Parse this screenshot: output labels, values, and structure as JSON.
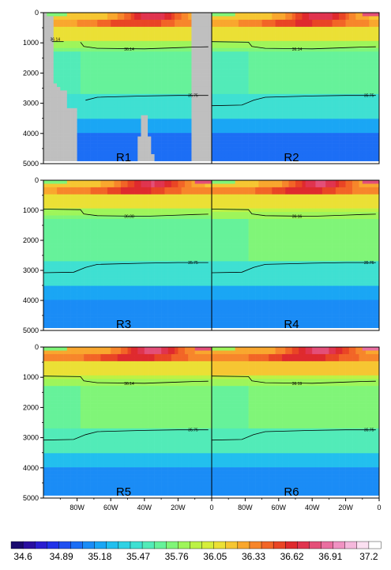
{
  "chart_data": {
    "type": "heatmap",
    "title": "",
    "xlabel": "",
    "ylabel": "",
    "x_range": [
      -100,
      0
    ],
    "y_range": [
      0,
      5000
    ],
    "y_inverted": true,
    "x_ticks": [
      {
        "value": -80,
        "label": "80W"
      },
      {
        "value": -60,
        "label": "60W"
      },
      {
        "value": -40,
        "label": "40W"
      },
      {
        "value": -20,
        "label": "20W"
      },
      {
        "value": 0,
        "label": "0"
      }
    ],
    "y_ticks": [
      {
        "value": 0,
        "label": "0"
      },
      {
        "value": 1000,
        "label": "1000"
      },
      {
        "value": 2000,
        "label": "2000"
      },
      {
        "value": 3000,
        "label": "3000"
      },
      {
        "value": 4000,
        "label": "4000"
      },
      {
        "value": 5000,
        "label": "5000"
      }
    ],
    "colorbar": {
      "labels": [
        "34.6",
        "34.89",
        "35.18",
        "35.47",
        "35.76",
        "36.05",
        "36.33",
        "36.62",
        "36.91",
        "37.2"
      ],
      "colors": [
        "#1a0a6e",
        "#2a0fa0",
        "#2b1ed0",
        "#2233e8",
        "#2050f0",
        "#1c6ef5",
        "#1a8cf6",
        "#1aa6f4",
        "#22bfee",
        "#30d2e4",
        "#3fe0d2",
        "#52ebb8",
        "#66f29a",
        "#80f578",
        "#9ef55a",
        "#bcf245",
        "#d6ee3a",
        "#ebe035",
        "#f6c632",
        "#f9a72e",
        "#f7862b",
        "#f26527",
        "#e94525",
        "#df2a2e",
        "#e0344f",
        "#e44f78",
        "#ea6fa0",
        "#f092c2",
        "#f5b8dc",
        "#fbe0f1",
        "#ffffff"
      ]
    },
    "panels": [
      {
        "name": "R1",
        "label": "R1",
        "land_mask": true,
        "contours": [
          {
            "value": 36.14,
            "label": "36.14"
          },
          {
            "value": 35.75,
            "label": "35.75"
          }
        ],
        "extra_left_label": "36.14"
      },
      {
        "name": "R2",
        "label": "R2",
        "land_mask": false,
        "contours": [
          {
            "value": 36.14,
            "label": "36.14"
          },
          {
            "value": 35.75,
            "label": "35.75"
          }
        ]
      },
      {
        "name": "R3",
        "label": "R3",
        "land_mask": false,
        "contours": [
          {
            "value": 36.08,
            "label": "36.08"
          },
          {
            "value": 35.75,
            "label": "35.75"
          }
        ]
      },
      {
        "name": "R4",
        "label": "R4",
        "land_mask": false,
        "contours": [
          {
            "value": 36.16,
            "label": "36.16"
          },
          {
            "value": 35.76,
            "label": "35.76"
          }
        ]
      },
      {
        "name": "R5",
        "label": "R5",
        "land_mask": false,
        "contours": [
          {
            "value": 36.14,
            "label": "36.14"
          },
          {
            "value": 35.75,
            "label": "35.75"
          }
        ]
      },
      {
        "name": "R6",
        "label": "R6",
        "land_mask": false,
        "contours": [
          {
            "value": 36.19,
            "label": "36.19"
          },
          {
            "value": 35.75,
            "label": "35.75"
          }
        ]
      }
    ]
  }
}
